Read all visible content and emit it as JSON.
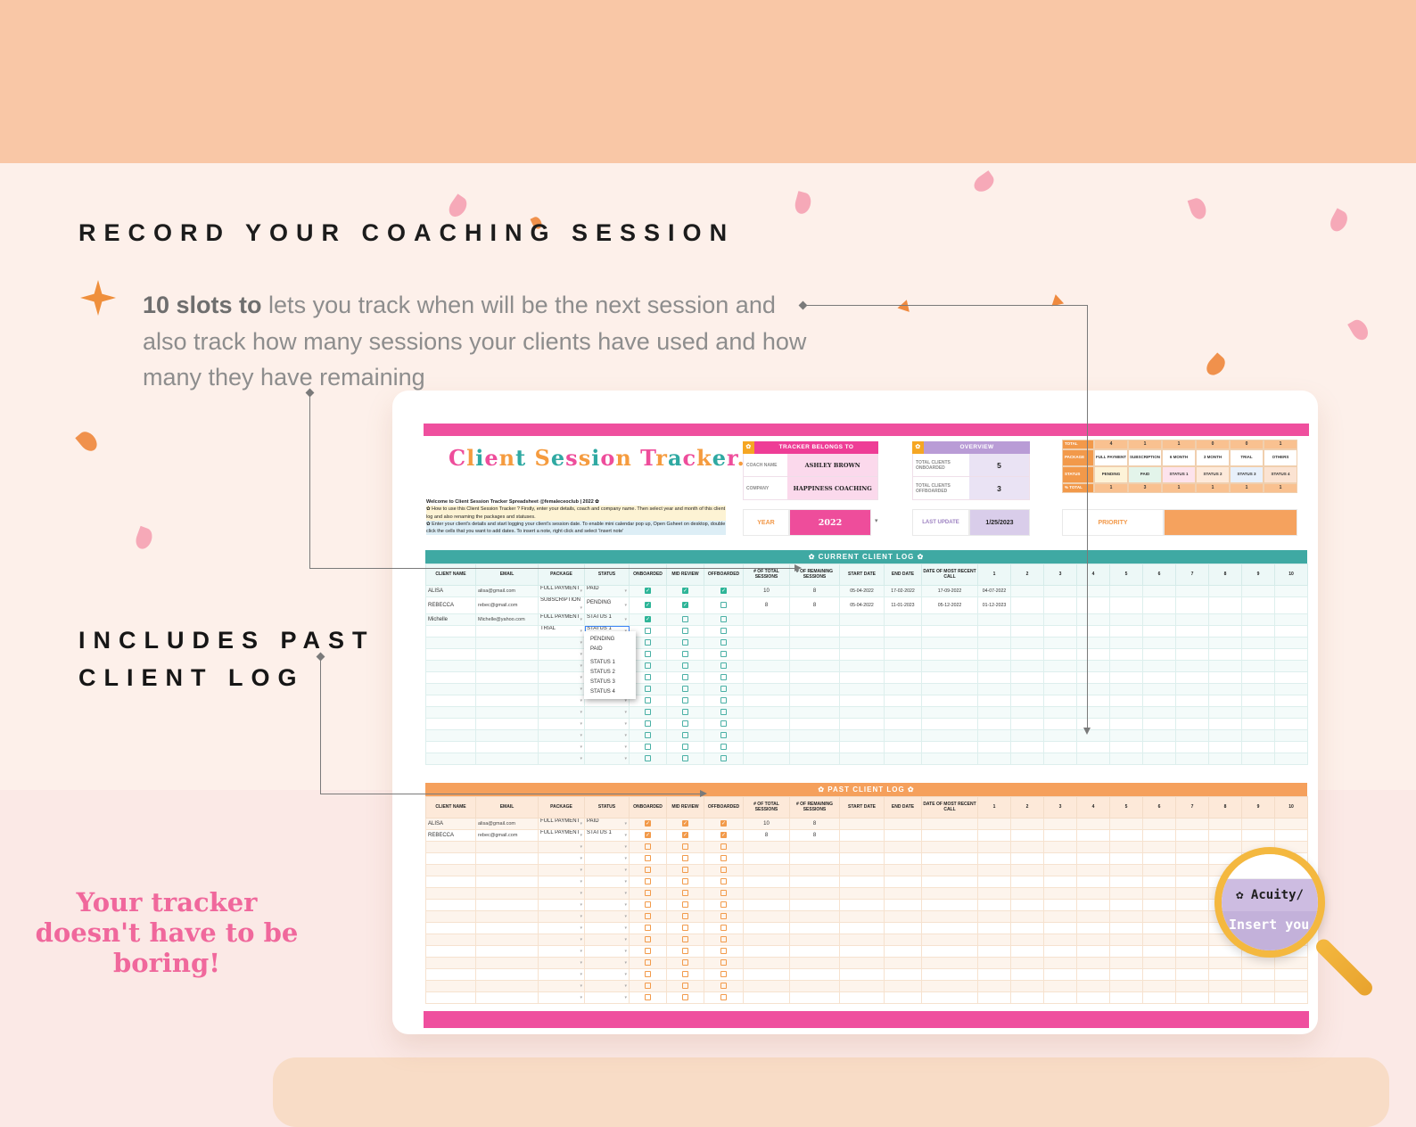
{
  "annotations": {
    "heading": "RECORD YOUR COACHING SESSION",
    "intro_bold": "10 slots to ",
    "intro_rest": "lets you track when will be the next session and also track how many sessions your clients have used and how many they have remaining",
    "includes_line1": "INCLUDES PAST",
    "includes_line2": "CLIENT LOG",
    "tagline": "Your tracker doesn't have to be boring!"
  },
  "magnifier": {
    "cell_text": "✿ Acuity/",
    "partial_text": "Insert you"
  },
  "sheet": {
    "title": "Client Session Tracker.",
    "title_colors": [
      "#ee4d9b",
      "#f59b3e",
      "#2fa9a2"
    ],
    "welcome": {
      "line1": "Welcome to Client Session Tracker Spreadsheet @femaleceoclub | 2022 ✿",
      "line2": "✿ How to use this Client Session Tracker ?  Firstly, enter your details, coach and company name. Then select year and month of this client log and also renaming the packages and statuses.",
      "line3": "✿ Enter your client's details and start logging your client's session date. To enable mini calendar pop up, Open Gsheet on desktop, double click the cells that you want to add dates. To insert a note, right click and select 'Insert note'"
    },
    "belongs": {
      "header": "TRACKER BELONGS TO",
      "rows": [
        {
          "label": "COACH NAME",
          "value": "ASHLEY BROWN"
        },
        {
          "label": "COMPANY",
          "value": "HAPPINESS COACHING"
        }
      ]
    },
    "overview": {
      "header": "OVERVIEW",
      "rows": [
        {
          "label": "TOTAL CLIENTS ONBOARDED",
          "value": "5"
        },
        {
          "label": "TOTAL CLIENTS OFFBOARDED",
          "value": "3"
        }
      ]
    },
    "legend": {
      "total_label": "TOTAL",
      "total_values": [
        "4",
        "1",
        "1",
        "0",
        "0",
        "1"
      ],
      "package_label": "PACKAGE",
      "packages": [
        "FULL PAYMENT",
        "SUBSCRIPTION",
        "6 MONTH",
        "3 MONTH",
        "TRIAL",
        "OTHERS"
      ],
      "status_label": "STATUS",
      "statuses": [
        "PENDING",
        "PAID",
        "STATUS 1",
        "STATUS 2",
        "STATUS 3",
        "STATUS 4"
      ],
      "pct_label": "% TOTAL",
      "pct_values": [
        "1",
        "3",
        "1",
        "1",
        "1",
        "1"
      ]
    },
    "year": {
      "label": "YEAR",
      "value": "2022"
    },
    "last_update": {
      "label": "LAST UPDATE",
      "value": "1/25/2023"
    },
    "priority": {
      "label": "PRIORITY"
    },
    "columns": [
      "CLIENT NAME",
      "EMAIL",
      "PACKAGE",
      "STATUS",
      "ONBOARDED",
      "MID REVIEW",
      "OFFBOARDED",
      "# OF TOTAL SESSIONS",
      "# OF REMAINING SESSIONS",
      "START DATE",
      "END DATE",
      "DATE OF MOST RECENT CALL",
      "1",
      "2",
      "3",
      "4",
      "5",
      "6",
      "7",
      "8",
      "9",
      "10"
    ],
    "current_log": {
      "header": "✿ CURRENT CLIENT LOG ✿",
      "rows": [
        {
          "name": "ALISA",
          "email": "alisa@gmail.com",
          "package": "FULL PAYMENT",
          "status": "PAID",
          "checks": [
            true,
            true,
            true
          ],
          "total": "10",
          "remaining": "8",
          "start": "05-04-2022",
          "end": "17-02-2022",
          "recent": "17-09-2022",
          "sessions": [
            "04-07-2022"
          ]
        },
        {
          "name": "REBECCA",
          "email": "rebec@gmail.com",
          "package": "SUBSCRIPTION",
          "status": "PENDING",
          "checks": [
            true,
            true,
            false
          ],
          "total": "8",
          "remaining": "8",
          "start": "05-04-2022",
          "end": "11-01-2023",
          "recent": "05-12-2022",
          "sessions": [
            "01-12-2023"
          ]
        },
        {
          "name": "Michelle",
          "email": "Michelle@yahoo.com",
          "package": "FULL PAYMENT",
          "status": "STATUS 1",
          "checks": [
            true,
            false,
            false
          ]
        },
        {
          "package": "TRIAL",
          "status": "STATUS 1",
          "selected": true,
          "checks": [
            false,
            false,
            false
          ]
        }
      ],
      "empty_rows": 11,
      "dropdown_options": [
        "PENDING",
        "PAID",
        "STATUS 1",
        "STATUS 2",
        "STATUS 3",
        "STATUS 4"
      ]
    },
    "past_log": {
      "header": "✿ PAST CLIENT LOG ✿",
      "rows": [
        {
          "name": "ALISA",
          "email": "alisa@gmail.com",
          "package": "FULL PAYMENT",
          "status": "PAID",
          "checks": [
            true,
            true,
            true
          ],
          "total": "10",
          "remaining": "8"
        },
        {
          "name": "REBECCA",
          "email": "rebec@gmail.com",
          "package": "FULL PAYMENT",
          "status": "STATUS 1",
          "checks": [
            true,
            true,
            true
          ],
          "total": "8",
          "remaining": "8"
        }
      ],
      "empty_rows": 14
    }
  }
}
